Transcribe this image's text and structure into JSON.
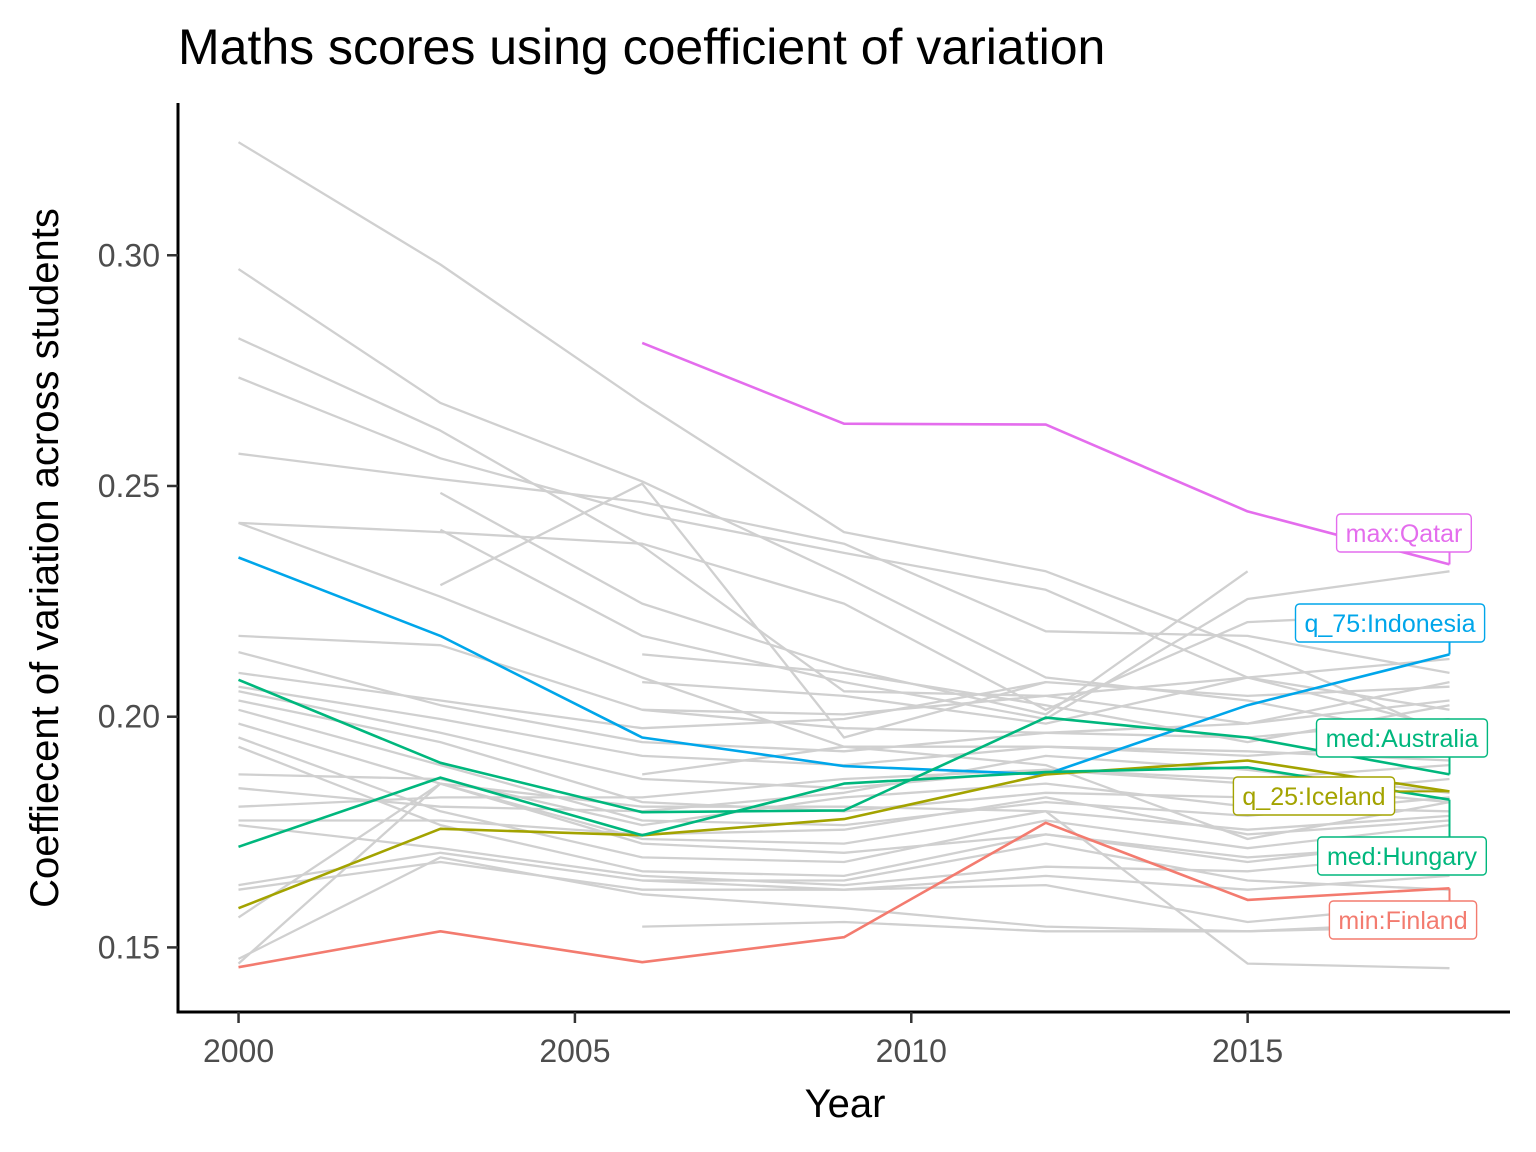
{
  "chart_data": {
    "type": "line",
    "title": "Maths scores using coefficient of variation",
    "xlabel": "Year",
    "ylabel": "Coeffiecent of variation across students",
    "xlim": [
      1999.1,
      2018.9
    ],
    "ylim": [
      0.136,
      0.333
    ],
    "x_ticks": [
      2000,
      2005,
      2010,
      2015
    ],
    "y_ticks": [
      0.15,
      0.2,
      0.25,
      0.3
    ],
    "x_tick_labels": [
      "2000",
      "2005",
      "2010",
      "2015"
    ],
    "y_tick_labels": [
      "0.15",
      "0.20",
      "0.25",
      "0.30"
    ],
    "grid": false,
    "legend": "none",
    "background_series_color": "#d0d0d0",
    "highlighted": [
      {
        "label": "max:Qatar",
        "color": "#e46ded",
        "x": [
          2006,
          2009,
          2012,
          2015,
          2018
        ],
        "y": [
          0.281,
          0.2635,
          0.2633,
          0.2445,
          0.233
        ]
      },
      {
        "label": "q_75:Indonesia",
        "color": "#00a6ea",
        "x": [
          2000,
          2003,
          2006,
          2009,
          2012,
          2015,
          2018
        ],
        "y": [
          0.2345,
          0.2175,
          0.1955,
          0.1893,
          0.1875,
          0.2025,
          0.2135
        ]
      },
      {
        "label": "med:Australia",
        "color": "#00b77d",
        "x": [
          2000,
          2003,
          2006,
          2009,
          2012,
          2015,
          2018
        ],
        "y": [
          0.208,
          0.19,
          0.1793,
          0.1797,
          0.1998,
          0.1955,
          0.1875
        ]
      },
      {
        "label": "q_25:Iceland",
        "color": "#a3a300",
        "x": [
          2000,
          2003,
          2006,
          2009,
          2012,
          2015,
          2018
        ],
        "y": [
          0.1585,
          0.1757,
          0.1743,
          0.1778,
          0.1875,
          0.1905,
          0.1838
        ]
      },
      {
        "label": "med:Hungary",
        "color": "#00b77d",
        "x": [
          2000,
          2003,
          2006,
          2009,
          2012,
          2015,
          2018
        ],
        "y": [
          0.1718,
          0.1868,
          0.1743,
          0.1855,
          0.188,
          0.189,
          0.182
        ]
      },
      {
        "label": "min:Finland",
        "color": "#f37b6f",
        "x": [
          2000,
          2003,
          2006,
          2009,
          2012,
          2015,
          2018
        ],
        "y": [
          0.1457,
          0.1535,
          0.1468,
          0.1522,
          0.177,
          0.1603,
          0.1628
        ]
      }
    ],
    "background_series": [
      {
        "x": [
          2000,
          2003,
          2006,
          2009,
          2012,
          2015,
          2018
        ],
        "y": [
          0.3245,
          0.298,
          0.268,
          0.24,
          0.2315,
          0.215,
          0.196
        ]
      },
      {
        "x": [
          2000,
          2003,
          2006,
          2009,
          2012,
          2015,
          2018
        ],
        "y": [
          0.297,
          0.268,
          0.251,
          0.2305,
          0.2085,
          0.2035,
          0.195
        ]
      },
      {
        "x": [
          2000,
          2003,
          2006,
          2009,
          2012,
          2015,
          2018
        ],
        "y": [
          0.282,
          0.262,
          0.237,
          0.2055,
          0.2045,
          0.1985,
          0.2075
        ]
      },
      {
        "x": [
          2000,
          2003,
          2006,
          2009,
          2012,
          2015,
          2018
        ],
        "y": [
          0.2735,
          0.256,
          0.244,
          0.2355,
          0.2275,
          0.2085,
          0.1975
        ]
      },
      {
        "x": [
          2000,
          2003,
          2006,
          2009,
          2012,
          2015,
          2018
        ],
        "y": [
          0.257,
          0.2515,
          0.2465,
          0.2375,
          0.2185,
          0.2175,
          0.2095
        ]
      },
      {
        "x": [
          2000,
          2003,
          2006,
          2009,
          2012,
          2015,
          2018
        ],
        "y": [
          0.242,
          0.24,
          0.2375,
          0.2245,
          0.2015,
          0.2205,
          0.2225
        ]
      },
      {
        "x": [
          2000,
          2003,
          2006,
          2009,
          2012,
          2015,
          2018
        ],
        "y": [
          0.242,
          0.226,
          0.2085,
          0.1935,
          0.1895,
          0.1735,
          0.1815
        ]
      },
      {
        "x": [
          2000,
          2003,
          2006,
          2009,
          2012,
          2015,
          2018
        ],
        "y": [
          0.2175,
          0.2155,
          0.2015,
          0.2005,
          0.2045,
          0.2085,
          0.2125
        ]
      },
      {
        "x": [
          2000,
          2003,
          2006,
          2009,
          2012,
          2015,
          2018
        ],
        "y": [
          0.214,
          0.2025,
          0.1945,
          0.1925,
          0.1965,
          0.1985,
          0.2035
        ]
      },
      {
        "x": [
          2000,
          2003,
          2006,
          2009,
          2012,
          2015,
          2018
        ],
        "y": [
          0.2095,
          0.2035,
          0.1975,
          0.1995,
          0.2075,
          0.2045,
          0.2065
        ]
      },
      {
        "x": [
          2000,
          2003,
          2006,
          2009,
          2012,
          2015,
          2018
        ],
        "y": [
          0.2065,
          0.1995,
          0.1915,
          0.1895,
          0.1935,
          0.1915,
          0.1945
        ]
      },
      {
        "x": [
          2000,
          2003,
          2006,
          2009,
          2012,
          2015,
          2018
        ],
        "y": [
          0.2055,
          0.1965,
          0.1865,
          0.1845,
          0.1885,
          0.1865,
          0.1895
        ]
      },
      {
        "x": [
          2000,
          2003,
          2006,
          2009,
          2012,
          2015,
          2018
        ],
        "y": [
          0.2035,
          0.1945,
          0.1815,
          0.1795,
          0.1835,
          0.1825,
          0.1865
        ]
      },
      {
        "x": [
          2000,
          2003,
          2006,
          2009,
          2012,
          2015,
          2018
        ],
        "y": [
          0.2015,
          0.1895,
          0.1775,
          0.1765,
          0.1815,
          0.1785,
          0.1825
        ]
      },
      {
        "x": [
          2000,
          2003,
          2006,
          2009,
          2012,
          2015,
          2018
        ],
        "y": [
          0.1985,
          0.1855,
          0.1735,
          0.1725,
          0.1795,
          0.1755,
          0.1785
        ]
      },
      {
        "x": [
          2000,
          2003,
          2006,
          2009,
          2012,
          2015,
          2018
        ],
        "y": [
          0.1955,
          0.1795,
          0.1695,
          0.1685,
          0.1775,
          0.1715,
          0.1765
        ]
      },
      {
        "x": [
          2000,
          2003,
          2006,
          2009,
          2012,
          2015,
          2018
        ],
        "y": [
          0.1935,
          0.1765,
          0.1665,
          0.1655,
          0.1745,
          0.1685,
          0.1735
        ]
      },
      {
        "x": [
          2000,
          2003,
          2006,
          2009,
          2012,
          2015,
          2018
        ],
        "y": [
          0.1875,
          0.1865,
          0.1765,
          0.1825,
          0.1855,
          0.1805,
          0.1795
        ]
      },
      {
        "x": [
          2000,
          2003,
          2006,
          2009,
          2012,
          2015,
          2018
        ],
        "y": [
          0.1845,
          0.1805,
          0.1795,
          0.1835,
          0.1915,
          0.1885,
          0.1835
        ]
      },
      {
        "x": [
          2000,
          2003,
          2006,
          2009,
          2012,
          2015,
          2018
        ],
        "y": [
          0.1805,
          0.1825,
          0.1825,
          0.1865,
          0.1885,
          0.1855,
          0.1815
        ]
      },
      {
        "x": [
          2000,
          2003,
          2006,
          2009,
          2012,
          2015,
          2018
        ],
        "y": [
          0.1775,
          0.1775,
          0.1745,
          0.1755,
          0.1825,
          0.1745,
          0.1775
        ]
      },
      {
        "x": [
          2000,
          2003,
          2006,
          2009,
          2012,
          2015,
          2018
        ],
        "y": [
          0.1765,
          0.1715,
          0.1655,
          0.1635,
          0.1675,
          0.1665,
          0.1705
        ]
      },
      {
        "x": [
          2000,
          2003,
          2006,
          2009,
          2012,
          2015,
          2018
        ],
        "y": [
          0.1635,
          0.1705,
          0.1645,
          0.1625,
          0.1655,
          0.1625,
          0.1655
        ]
      },
      {
        "x": [
          2000,
          2003,
          2006,
          2009,
          2012,
          2015,
          2018
        ],
        "y": [
          0.1625,
          0.1685,
          0.1625,
          0.1625,
          0.1635,
          0.1555,
          0.1595
        ]
      },
      {
        "x": [
          2000,
          2003,
          2006,
          2009,
          2012,
          2015,
          2018
        ],
        "y": [
          0.1565,
          0.1855,
          0.1725,
          0.1705,
          0.1745,
          0.1695,
          0.1725
        ]
      },
      {
        "x": [
          2000,
          2003,
          2006,
          2009,
          2012,
          2015,
          2018
        ],
        "y": [
          0.1475,
          0.1695,
          0.1615,
          0.1585,
          0.1545,
          0.1535,
          0.1545
        ]
      },
      {
        "x": [
          2000,
          2003,
          2006,
          2009,
          2012,
          2015,
          2018
        ],
        "y": [
          0.1465,
          0.1855,
          0.1805,
          0.1805,
          0.1795,
          0.1465,
          0.1455
        ]
      },
      {
        "x": [
          2003,
          2006,
          2009,
          2012,
          2015
        ],
        "y": [
          0.2485,
          0.2245,
          0.2105,
          0.2005,
          0.2315
        ]
      },
      {
        "x": [
          2003,
          2006,
          2009,
          2012,
          2015,
          2018
        ],
        "y": [
          0.2405,
          0.2175,
          0.2075,
          0.1995,
          0.2255,
          0.2315
        ]
      },
      {
        "x": [
          2003,
          2006,
          2009,
          2012
        ],
        "y": [
          0.2285,
          0.2505,
          0.1955,
          0.2075
        ]
      },
      {
        "x": [
          2006,
          2009,
          2012,
          2015,
          2018
        ],
        "y": [
          0.2135,
          0.2095,
          0.2025,
          0.1945,
          0.2025
        ]
      },
      {
        "x": [
          2006,
          2009,
          2012,
          2015,
          2018
        ],
        "y": [
          0.2075,
          0.2045,
          0.1985,
          0.2085,
          0.2015
        ]
      },
      {
        "x": [
          2006,
          2009,
          2012,
          2015,
          2018
        ],
        "y": [
          0.1545,
          0.1555,
          0.1535,
          0.1535,
          0.1555
        ]
      },
      {
        "x": [
          2006,
          2009,
          2012,
          2015,
          2018
        ],
        "y": [
          0.1645,
          0.1645,
          0.1725,
          0.1645,
          0.1625
        ]
      },
      {
        "x": [
          2006,
          2009,
          2012,
          2015,
          2018
        ],
        "y": [
          0.1875,
          0.1935,
          0.1935,
          0.1925,
          0.1905
        ]
      },
      {
        "x": [
          2006,
          2009,
          2012,
          2015,
          2018
        ],
        "y": [
          0.2015,
          0.1975,
          0.1965,
          0.1955,
          0.1995
        ]
      }
    ]
  }
}
